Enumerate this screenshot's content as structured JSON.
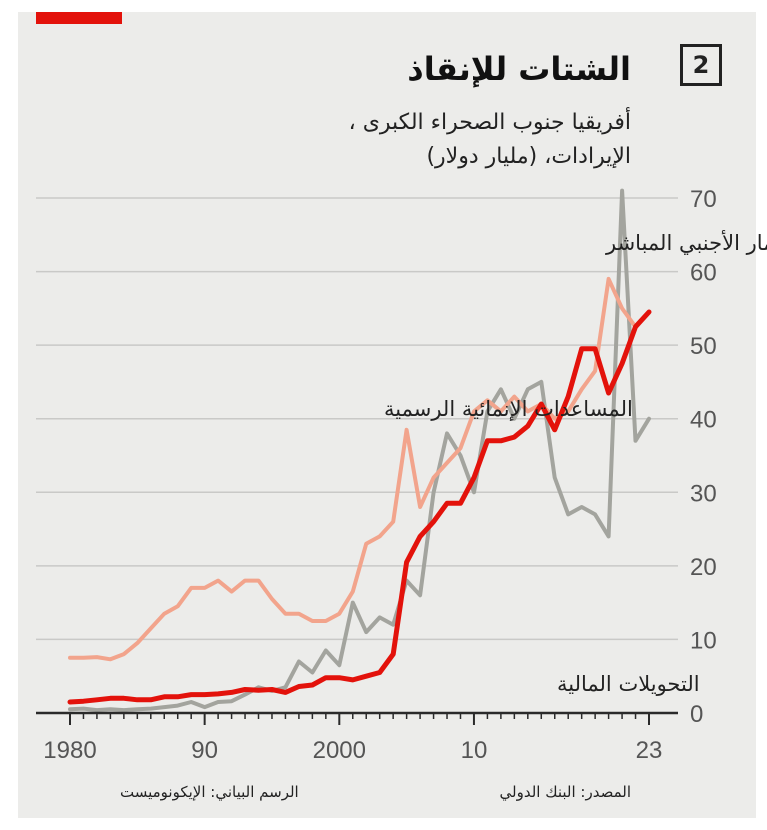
{
  "figure": {
    "number": "2",
    "title": "الشتات للإنقاذ",
    "subtitle_line1": "أفريقيا جنوب الصحراء الكبرى ،",
    "subtitle_line2": "الإيرادات، (مليار دولار)",
    "source": "المصدر: البنك الدولي",
    "credit": "الرسم البياني: الإيكونوميست"
  },
  "colors": {
    "remittances": "#e3120b",
    "oda": "#f2a48c",
    "fdi": "#a3a49e",
    "grid": "#c9c9c7",
    "panel": "#ececea",
    "accent": "#e3120b"
  },
  "chart_data": {
    "type": "line",
    "title": "الشتات للإنقاذ",
    "ylabel": "مليار دولار",
    "xlabel": "",
    "ylim": [
      0,
      70
    ],
    "xlim": [
      1980,
      2023
    ],
    "yticks": [
      0,
      10,
      20,
      30,
      40,
      50,
      60,
      70
    ],
    "xtick_labels": [
      {
        "x": 1980,
        "label": "1980"
      },
      {
        "x": 1990,
        "label": "90"
      },
      {
        "x": 2000,
        "label": "2000"
      },
      {
        "x": 2010,
        "label": "10"
      },
      {
        "x": 2023,
        "label": "23"
      }
    ],
    "x": [
      1980,
      1981,
      1982,
      1983,
      1984,
      1985,
      1986,
      1987,
      1988,
      1989,
      1990,
      1991,
      1992,
      1993,
      1994,
      1995,
      1996,
      1997,
      1998,
      1999,
      2000,
      2001,
      2002,
      2003,
      2004,
      2005,
      2006,
      2007,
      2008,
      2009,
      2010,
      2011,
      2012,
      2013,
      2014,
      2015,
      2016,
      2017,
      2018,
      2019,
      2020,
      2021,
      2022,
      2023
    ],
    "series": [
      {
        "key": "fdi",
        "name": "الاستثمار الأجنبي المباشر",
        "values": [
          0.5,
          0.6,
          0.4,
          0.5,
          0.4,
          0.5,
          0.6,
          0.8,
          1.0,
          1.5,
          0.8,
          1.5,
          1.6,
          2.5,
          3.5,
          3.0,
          3.5,
          7.0,
          5.5,
          8.5,
          6.5,
          15.0,
          11.0,
          13.0,
          12.0,
          18.0,
          16.0,
          30.0,
          38.0,
          35.0,
          30.0,
          41.0,
          44.0,
          40.0,
          44.0,
          45.0,
          32.0,
          27.0,
          28.0,
          27.0,
          24.0,
          71.0,
          37.0,
          40.0
        ]
      },
      {
        "key": "oda",
        "name": "المساعدات الإنمائية الرسمية",
        "values": [
          7.5,
          7.5,
          7.6,
          7.3,
          8.0,
          9.5,
          11.5,
          13.5,
          14.5,
          17.0,
          17.0,
          18.0,
          16.5,
          18.0,
          18.0,
          15.5,
          13.5,
          13.5,
          12.5,
          12.5,
          13.5,
          16.5,
          23.0,
          24.0,
          26.0,
          38.5,
          28.0,
          32.0,
          34.0,
          36.0,
          41.0,
          42.5,
          41.0,
          43.0,
          41.0,
          42.0,
          40.0,
          41.0,
          44.0,
          46.5,
          59.0,
          55.0,
          52.5,
          null
        ]
      },
      {
        "key": "remittances",
        "name": "التحويلات المالية",
        "values": [
          1.5,
          1.6,
          1.8,
          2.0,
          2.0,
          1.8,
          1.8,
          2.2,
          2.2,
          2.5,
          2.5,
          2.6,
          2.8,
          3.2,
          3.1,
          3.2,
          2.8,
          3.6,
          3.8,
          4.8,
          4.8,
          4.5,
          5.0,
          5.5,
          8.0,
          20.5,
          24.0,
          26.0,
          28.5,
          28.5,
          32.0,
          37.0,
          37.0,
          37.5,
          39.0,
          42.0,
          38.5,
          43.0,
          49.5,
          49.5,
          43.5,
          47.5,
          52.5,
          54.5
        ]
      }
    ]
  }
}
